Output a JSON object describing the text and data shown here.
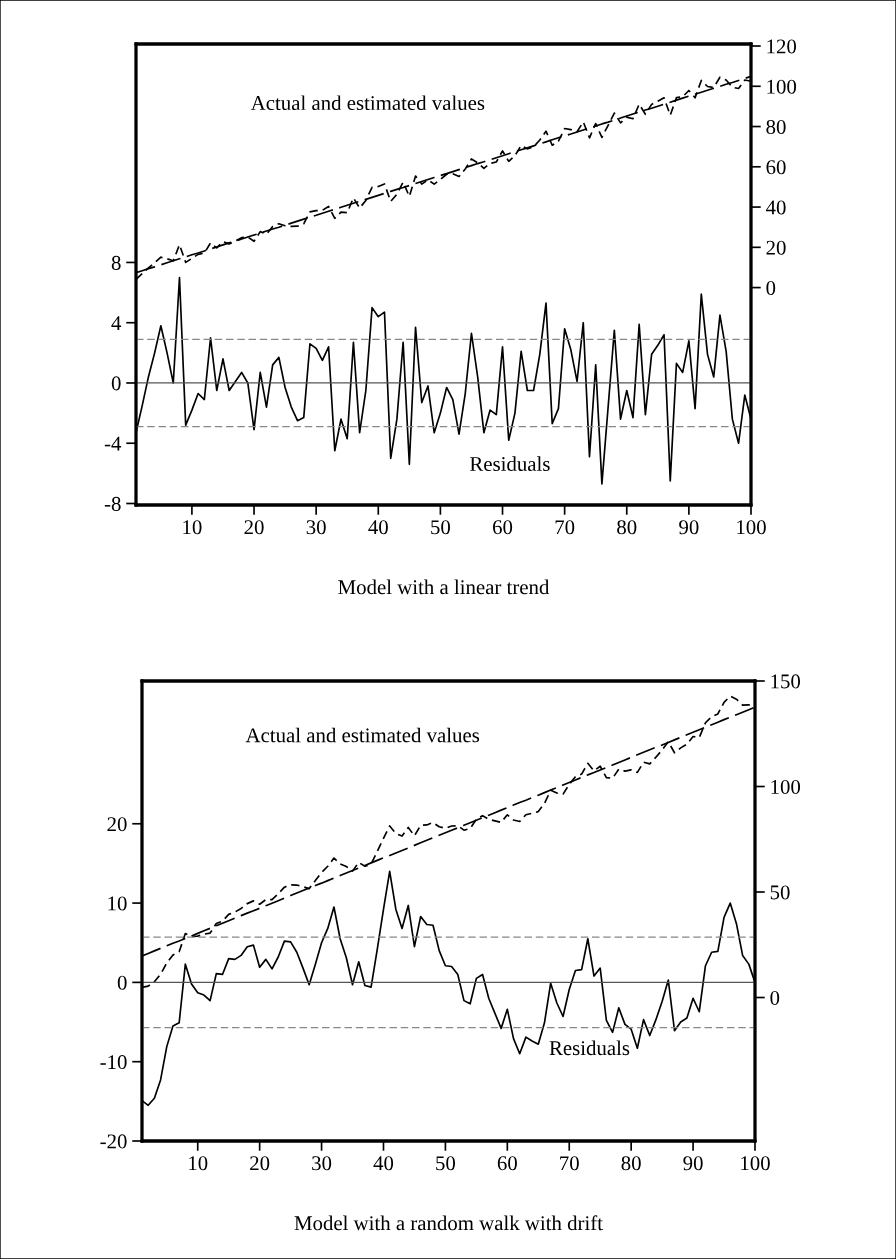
{
  "chart_data": [
    {
      "type": "line",
      "title": "Model with a linear trend",
      "annotations": [
        "Actual and estimated values",
        "Residuals"
      ],
      "x": [
        1,
        2,
        3,
        4,
        5,
        6,
        7,
        8,
        9,
        10,
        11,
        12,
        13,
        14,
        15,
        16,
        17,
        18,
        19,
        20,
        21,
        22,
        23,
        24,
        25,
        26,
        27,
        28,
        29,
        30,
        31,
        32,
        33,
        34,
        35,
        36,
        37,
        38,
        39,
        40,
        41,
        42,
        43,
        44,
        45,
        46,
        47,
        48,
        49,
        50,
        51,
        52,
        53,
        54,
        55,
        56,
        57,
        58,
        59,
        60,
        61,
        62,
        63,
        64,
        65,
        66,
        67,
        68,
        69,
        70,
        71,
        72,
        73,
        74,
        75,
        76,
        77,
        78,
        79,
        80,
        81,
        82,
        83,
        84,
        85,
        86,
        87,
        88,
        89,
        90,
        91,
        92,
        93,
        94,
        95,
        96,
        97,
        98,
        99,
        100
      ],
      "series": [
        {
          "color": "#000000",
          "line_style": "solid",
          "values": [
            -3.3,
            -1.5,
            0.4,
            2.0,
            3.8,
            2.0,
            0.0,
            7.0,
            -2.8,
            -1.8,
            -0.7,
            -1.1,
            3.0,
            -0.5,
            1.6,
            -0.5,
            0.1,
            0.7,
            0.0,
            -3.1,
            0.7,
            -1.6,
            1.2,
            1.7,
            -0.3,
            -1.6,
            -2.5,
            -2.3,
            2.6,
            2.3,
            1.5,
            2.4,
            -4.5,
            -2.4,
            -3.7,
            2.7,
            -3.3,
            -0.5,
            5.0,
            4.4,
            4.7,
            -5.0,
            -2.4,
            2.7,
            -5.4,
            3.7,
            -1.3,
            -0.2,
            -3.3,
            -2.0,
            -0.3,
            -1.1,
            -3.4,
            -0.7,
            3.3,
            0.4,
            -3.3,
            -1.8,
            -2.1,
            2.4,
            -3.8,
            -2.0,
            2.1,
            -0.5,
            -0.5,
            1.9,
            5.3,
            -2.7,
            -1.7,
            3.6,
            2.2,
            0.1,
            4.0,
            -4.9,
            1.2,
            -6.7,
            -1.6,
            3.5,
            -2.4,
            -0.5,
            -2.3,
            3.9,
            -2.1,
            1.9,
            2.5,
            3.2,
            -6.5,
            1.3,
            0.7,
            2.8,
            -1.7,
            5.9,
            1.9,
            0.4,
            4.5,
            2.1,
            -2.4,
            -4.0,
            -0.8,
            -2.4
          ]
        },
        {
          "color": "#000000",
          "line_style": "dashed",
          "axis": "y2",
          "values": [
            4.1,
            6.9,
            9.8,
            12.3,
            15.1,
            14.3,
            13.3,
            21.3,
            12.5,
            14.5,
            16.5,
            17.1,
            22.2,
            19.7,
            22.8,
            21.7,
            23.2,
            24.8,
            25.1,
            23.0,
            27.8,
            26.5,
            30.3,
            31.7,
            30.7,
            30.4,
            30.5,
            31.7,
            37.6,
            38.2,
            38.4,
            40.3,
            34.4,
            37.5,
            37.2,
            44.6,
            39.5,
            43.3,
            49.8,
            50.2,
            51.5,
            42.8,
            46.4,
            52.4,
            45.3,
            55.4,
            51.4,
            53.5,
            51.4,
            53.7,
            56.3,
            56.5,
            55.2,
            58.9,
            63.9,
            62.0,
            59.2,
            61.7,
            62.4,
            67.9,
            62.7,
            65.5,
            70.6,
            68.9,
            69.9,
            73.3,
            77.7,
            70.7,
            72.7,
            79.0,
            78.5,
            77.4,
            82.3,
            74.4,
            81.5,
            74.6,
            80.6,
            86.7,
            81.8,
            84.7,
            83.9,
            91.1,
            86.1,
            91.0,
            92.6,
            94.3,
            85.6,
            94.4,
            94.8,
            97.9,
            94.3,
            102.9,
            99.9,
            99.4,
            104.5,
            103.1,
            99.5,
            98.9,
            103.1,
            102.5
          ]
        },
        {
          "color": "#000000",
          "line_style": "dashed",
          "axis": "y2",
          "values": [
            7.4,
            8.4,
            9.4,
            10.3,
            11.3,
            12.3,
            13.3,
            14.3,
            15.3,
            16.3,
            17.2,
            18.2,
            19.2,
            20.2,
            21.2,
            22.2,
            23.1,
            24.1,
            25.1,
            26.1,
            27.1,
            28.1,
            29.1,
            30.0,
            31.0,
            32.0,
            33.0,
            34.0,
            35.0,
            35.9,
            36.9,
            37.9,
            38.9,
            39.9,
            40.9,
            41.9,
            42.8,
            43.8,
            44.8,
            45.8,
            46.8,
            47.8,
            48.8,
            49.7,
            50.7,
            51.7,
            52.7,
            53.7,
            54.7,
            55.7,
            56.6,
            57.6,
            58.6,
            59.6,
            60.6,
            61.6,
            62.5,
            63.5,
            64.5,
            65.5,
            66.5,
            67.5,
            68.5,
            69.4,
            70.4,
            71.4,
            72.4,
            73.4,
            74.4,
            75.4,
            76.3,
            77.3,
            78.3,
            79.3,
            80.3,
            81.3,
            82.2,
            83.2,
            84.2,
            85.2,
            86.2,
            87.2,
            88.2,
            89.1,
            90.1,
            91.1,
            92.1,
            93.1,
            94.1,
            95.1,
            96.0,
            97.0,
            98.0,
            99.0,
            100.0,
            101.0,
            101.9,
            102.9,
            103.9,
            104.9
          ]
        }
      ],
      "ref_lines": [
        {
          "axis": "y",
          "value": 0,
          "color": "#555555",
          "line_style": "solid"
        },
        {
          "axis": "y",
          "value": 2.9,
          "color": "#888888",
          "line_style": "dashed"
        },
        {
          "axis": "y",
          "value": -2.9,
          "color": "#888888",
          "line_style": "dashed"
        }
      ],
      "xlim": [
        1,
        100
      ],
      "xticks": [
        10,
        20,
        30,
        40,
        50,
        60,
        70,
        80,
        90,
        100
      ],
      "ylim": [
        -8.1,
        22.5
      ],
      "yticks": [
        -8,
        -4,
        0,
        4,
        8
      ],
      "y2lim": [
        -108,
        121
      ],
      "y2ticks": [
        0,
        20,
        40,
        60,
        80,
        100,
        120
      ],
      "grid": false,
      "legend": false
    },
    {
      "type": "line",
      "title": "Model with a random walk with drift",
      "annotations": [
        "Actual and estimated values",
        "Residuals"
      ],
      "x": [
        1,
        2,
        3,
        4,
        5,
        6,
        7,
        8,
        9,
        10,
        11,
        12,
        13,
        14,
        15,
        16,
        17,
        18,
        19,
        20,
        21,
        22,
        23,
        24,
        25,
        26,
        27,
        28,
        29,
        30,
        31,
        32,
        33,
        34,
        35,
        36,
        37,
        38,
        39,
        40,
        41,
        42,
        43,
        44,
        45,
        46,
        47,
        48,
        49,
        50,
        51,
        52,
        53,
        54,
        55,
        56,
        57,
        58,
        59,
        60,
        61,
        62,
        63,
        64,
        65,
        66,
        67,
        68,
        69,
        70,
        71,
        72,
        73,
        74,
        75,
        76,
        77,
        78,
        79,
        80,
        81,
        82,
        83,
        84,
        85,
        86,
        87,
        88,
        89,
        90,
        91,
        92,
        93,
        94,
        95,
        96,
        97,
        98,
        99,
        100
      ],
      "series": [
        {
          "color": "#000000",
          "line_style": "solid",
          "values": [
            -14.9,
            -15.5,
            -14.6,
            -12.3,
            -8.1,
            -5.5,
            -5.1,
            2.3,
            -0.2,
            -1.3,
            -1.6,
            -2.3,
            1.1,
            1.0,
            3.0,
            2.9,
            3.4,
            4.5,
            4.7,
            1.9,
            2.9,
            1.7,
            3.2,
            5.2,
            5.1,
            3.8,
            1.8,
            -0.3,
            2.3,
            5.0,
            6.8,
            9.5,
            5.5,
            3.1,
            -0.3,
            2.6,
            -0.4,
            -0.6,
            4.2,
            9.2,
            14.0,
            9.2,
            6.8,
            9.7,
            4.5,
            8.3,
            7.3,
            7.2,
            4.0,
            2.1,
            2.0,
            1.0,
            -2.3,
            -2.7,
            0.5,
            1.0,
            -2.0,
            -3.9,
            -5.8,
            -3.4,
            -7.1,
            -9.0,
            -6.9,
            -7.4,
            -7.8,
            -5.1,
            -0.1,
            -2.6,
            -4.3,
            -0.9,
            1.5,
            1.6,
            5.5,
            0.8,
            1.8,
            -4.8,
            -6.3,
            -3.2,
            -5.3,
            -5.9,
            -8.3,
            -4.7,
            -6.7,
            -4.7,
            -2.4,
            0.3,
            -6.1,
            -5.0,
            -4.5,
            -2.0,
            -3.7,
            2.1,
            3.8,
            3.9,
            8.2,
            10.0,
            7.4,
            3.4,
            2.3,
            0.0
          ]
        },
        {
          "color": "#000000",
          "line_style": "dashed",
          "axis": "y2",
          "values": [
            4.8,
            5.4,
            7.5,
            11.0,
            16.4,
            20.2,
            21.7,
            30.3,
            29.0,
            29.1,
            30.0,
            30.5,
            35.1,
            36.2,
            39.4,
            40.5,
            42.2,
            44.5,
            45.8,
            44.2,
            46.4,
            46.4,
            49.1,
            52.3,
            53.4,
            53.3,
            52.5,
            51.6,
            55.4,
            59.2,
            62.2,
            66.1,
            63.3,
            62.1,
            59.9,
            64.0,
            62.2,
            63.2,
            69.2,
            75.4,
            81.3,
            77.7,
            76.5,
            80.6,
            76.6,
            81.6,
            81.8,
            82.9,
            80.9,
            80.2,
            81.3,
            81.4,
            79.3,
            80.1,
            84.5,
            86.2,
            84.4,
            83.7,
            83.0,
            86.6,
            84.1,
            83.4,
            86.6,
            87.3,
            88.1,
            92.0,
            98.2,
            96.9,
            96.4,
            101.0,
            104.6,
            105.9,
            111.0,
            107.4,
            109.6,
            104.2,
            103.9,
            108.2,
            107.3,
            107.9,
            106.7,
            111.5,
            110.7,
            113.9,
            117.3,
            121.2,
            116.0,
            118.3,
            120.0,
            123.7,
            123.2,
            130.2,
            133.1,
            134.4,
            139.9,
            142.8,
            141.4,
            138.6,
            138.7,
            137.6
          ]
        },
        {
          "color": "#000000",
          "line_style": "dashed",
          "axis": "y2",
          "values": [
            19.7,
            20.9,
            22.1,
            23.3,
            24.5,
            25.7,
            26.8,
            28.0,
            29.2,
            30.4,
            31.6,
            32.8,
            34.0,
            35.2,
            36.4,
            37.6,
            38.8,
            40.0,
            41.1,
            42.3,
            43.5,
            44.7,
            45.9,
            47.1,
            48.3,
            49.5,
            50.7,
            51.9,
            53.1,
            54.2,
            55.4,
            56.6,
            57.8,
            59.0,
            60.2,
            61.4,
            62.6,
            63.8,
            65.0,
            66.2,
            67.3,
            68.5,
            69.7,
            70.9,
            72.1,
            73.3,
            74.5,
            75.7,
            76.9,
            78.1,
            79.3,
            80.4,
            81.6,
            82.8,
            84.0,
            85.2,
            86.4,
            87.6,
            88.8,
            90.0,
            91.2,
            92.4,
            93.5,
            94.7,
            95.9,
            97.1,
            98.3,
            99.5,
            100.7,
            101.9,
            103.1,
            104.3,
            105.5,
            106.6,
            107.8,
            109.0,
            110.2,
            111.4,
            112.6,
            113.8,
            115.0,
            116.2,
            117.4,
            118.6,
            119.7,
            120.9,
            122.1,
            123.3,
            124.5,
            125.7,
            126.9,
            128.1,
            129.3,
            130.5,
            131.7,
            132.8,
            134.0,
            135.2,
            136.4,
            137.6
          ]
        }
      ],
      "ref_lines": [
        {
          "axis": "y",
          "value": 0,
          "color": "#555555",
          "line_style": "solid"
        },
        {
          "axis": "y",
          "value": 5.7,
          "color": "#888888",
          "line_style": "dashed"
        },
        {
          "axis": "y",
          "value": -5.7,
          "color": "#888888",
          "line_style": "dashed"
        }
      ],
      "xlim": [
        1,
        100
      ],
      "xticks": [
        10,
        20,
        30,
        40,
        50,
        60,
        70,
        80,
        90,
        100
      ],
      "ylim": [
        -20,
        38
      ],
      "yticks": [
        -20,
        -10,
        0,
        10,
        20
      ],
      "y2lim": [
        -68,
        150
      ],
      "y2ticks": [
        0,
        50,
        100,
        150
      ],
      "grid": false,
      "legend": false
    }
  ]
}
